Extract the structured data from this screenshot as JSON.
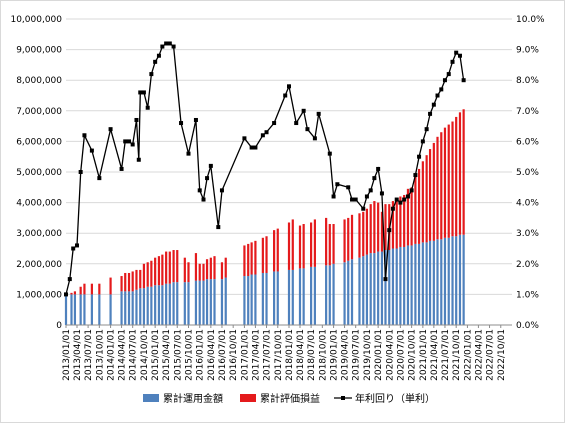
{
  "chart_data": {
    "type": "bar+line",
    "title": "",
    "grid": true,
    "legend_position": "bottom",
    "colors": {
      "invested": "#4f81bd",
      "gain": "#e41a1c",
      "yield": "#000000",
      "grid": "#d9d9d9"
    },
    "y_left": {
      "min": 0,
      "max": 10000000,
      "ticks": [
        "0",
        "1,000,000",
        "2,000,000",
        "3,000,000",
        "4,000,000",
        "5,000,000",
        "6,000,000",
        "7,000,000",
        "8,000,000",
        "9,000,000",
        "10,000,000"
      ]
    },
    "y_right": {
      "min": 0,
      "max": 0.1,
      "ticks": [
        "0.0%",
        "1.0%",
        "2.0%",
        "3.0%",
        "4.0%",
        "5.0%",
        "6.0%",
        "7.0%",
        "8.0%",
        "9.0%",
        "10.0%"
      ]
    },
    "x_ticks": [
      "2013/01/01",
      "2013/04/01",
      "2013/07/01",
      "2013/10/01",
      "2014/01/01",
      "2014/04/01",
      "2014/07/01",
      "2014/10/01",
      "2015/01/01",
      "2015/04/01",
      "2015/07/01",
      "2015/10/01",
      "2016/01/01",
      "2016/04/01",
      "2016/07/01",
      "2016/10/01",
      "2017/01/01",
      "2017/04/01",
      "2017/07/01",
      "2017/10/01",
      "2018/01/01",
      "2018/04/01",
      "2018/07/01",
      "2018/10/01",
      "2019/01/01",
      "2019/04/01",
      "2019/07/01",
      "2019/10/01",
      "2020/01/01",
      "2020/04/01",
      "2020/07/01",
      "2020/10/01",
      "2021/01/01",
      "2021/04/01",
      "2021/07/01",
      "2021/10/01",
      "2022/01/01",
      "2022/04/01",
      "2022/07/01",
      "2022/10/01"
    ],
    "series": [
      {
        "name": "累計運用金額",
        "type": "bar-stack-base",
        "points": [
          [
            "2013/01/01",
            1000000
          ],
          [
            "2013/02/15",
            1000000
          ],
          [
            "2013/03/15",
            1000000
          ],
          [
            "2013/05/01",
            1000000
          ],
          [
            "2013/06/01",
            1000000
          ],
          [
            "2013/08/01",
            1000000
          ],
          [
            "2013/10/01",
            1000000
          ],
          [
            "2014/01/01",
            1000000
          ],
          [
            "2014/04/01",
            1100000
          ],
          [
            "2014/05/01",
            1100000
          ],
          [
            "2014/06/01",
            1100000
          ],
          [
            "2014/07/01",
            1100000
          ],
          [
            "2014/08/01",
            1150000
          ],
          [
            "2014/09/01",
            1200000
          ],
          [
            "2014/10/01",
            1200000
          ],
          [
            "2014/11/01",
            1250000
          ],
          [
            "2014/12/01",
            1250000
          ],
          [
            "2015/01/01",
            1300000
          ],
          [
            "2015/02/01",
            1300000
          ],
          [
            "2015/03/01",
            1300000
          ],
          [
            "2015/04/01",
            1350000
          ],
          [
            "2015/05/01",
            1350000
          ],
          [
            "2015/06/01",
            1400000
          ],
          [
            "2015/07/01",
            1400000
          ],
          [
            "2015/09/01",
            1400000
          ],
          [
            "2015/10/01",
            1400000
          ],
          [
            "2015/12/01",
            1450000
          ],
          [
            "2016/01/01",
            1450000
          ],
          [
            "2016/02/01",
            1450000
          ],
          [
            "2016/03/01",
            1500000
          ],
          [
            "2016/04/01",
            1500000
          ],
          [
            "2016/05/01",
            1500000
          ],
          [
            "2016/07/01",
            1500000
          ],
          [
            "2016/08/01",
            1550000
          ],
          [
            "2017/01/01",
            1600000
          ],
          [
            "2017/02/01",
            1600000
          ],
          [
            "2017/03/01",
            1650000
          ],
          [
            "2017/04/01",
            1650000
          ],
          [
            "2017/06/01",
            1700000
          ],
          [
            "2017/07/01",
            1700000
          ],
          [
            "2017/09/01",
            1750000
          ],
          [
            "2017/10/01",
            1750000
          ],
          [
            "2018/01/01",
            1800000
          ],
          [
            "2018/02/01",
            1800000
          ],
          [
            "2018/04/01",
            1850000
          ],
          [
            "2018/05/01",
            1850000
          ],
          [
            "2018/07/01",
            1900000
          ],
          [
            "2018/08/01",
            1900000
          ],
          [
            "2018/11/01",
            1950000
          ],
          [
            "2018/12/01",
            1950000
          ],
          [
            "2019/01/01",
            2000000
          ],
          [
            "2019/04/01",
            2050000
          ],
          [
            "2019/05/01",
            2100000
          ],
          [
            "2019/06/01",
            2150000
          ],
          [
            "2019/08/01",
            2200000
          ],
          [
            "2019/09/01",
            2250000
          ],
          [
            "2019/10/01",
            2300000
          ],
          [
            "2019/11/01",
            2350000
          ],
          [
            "2019/12/01",
            2350000
          ],
          [
            "2020/01/01",
            2400000
          ],
          [
            "2020/02/01",
            2400000
          ],
          [
            "2020/03/01",
            2450000
          ],
          [
            "2020/04/01",
            2450000
          ],
          [
            "2020/05/01",
            2500000
          ],
          [
            "2020/06/01",
            2500000
          ],
          [
            "2020/07/01",
            2550000
          ],
          [
            "2020/08/01",
            2550000
          ],
          [
            "2020/09/01",
            2600000
          ],
          [
            "2020/10/01",
            2600000
          ],
          [
            "2020/11/01",
            2650000
          ],
          [
            "2020/12/01",
            2650000
          ],
          [
            "2021/01/01",
            2700000
          ],
          [
            "2021/02/01",
            2700000
          ],
          [
            "2021/03/01",
            2750000
          ],
          [
            "2021/04/01",
            2750000
          ],
          [
            "2021/05/01",
            2800000
          ],
          [
            "2021/06/01",
            2800000
          ],
          [
            "2021/07/01",
            2850000
          ],
          [
            "2021/08/01",
            2850000
          ],
          [
            "2021/09/01",
            2900000
          ],
          [
            "2021/10/01",
            2900000
          ],
          [
            "2021/11/01",
            2950000
          ],
          [
            "2021/12/01",
            2950000
          ]
        ]
      },
      {
        "name": "累計評価損益",
        "type": "bar-stack-top",
        "points": [
          [
            "2013/01/01",
            0
          ],
          [
            "2013/02/15",
            50000
          ],
          [
            "2013/03/15",
            100000
          ],
          [
            "2013/05/01",
            250000
          ],
          [
            "2013/06/01",
            350000
          ],
          [
            "2013/08/01",
            350000
          ],
          [
            "2013/10/01",
            350000
          ],
          [
            "2014/01/01",
            550000
          ],
          [
            "2014/04/01",
            500000
          ],
          [
            "2014/05/01",
            600000
          ],
          [
            "2014/06/01",
            600000
          ],
          [
            "2014/07/01",
            650000
          ],
          [
            "2014/08/01",
            650000
          ],
          [
            "2014/09/01",
            600000
          ],
          [
            "2014/10/01",
            800000
          ],
          [
            "2014/11/01",
            800000
          ],
          [
            "2014/12/01",
            850000
          ],
          [
            "2015/01/01",
            900000
          ],
          [
            "2015/02/01",
            950000
          ],
          [
            "2015/03/01",
            1000000
          ],
          [
            "2015/04/01",
            1050000
          ],
          [
            "2015/05/01",
            1050000
          ],
          [
            "2015/06/01",
            1050000
          ],
          [
            "2015/07/01",
            1050000
          ],
          [
            "2015/09/01",
            800000
          ],
          [
            "2015/10/01",
            650000
          ],
          [
            "2015/12/01",
            900000
          ],
          [
            "2016/01/01",
            550000
          ],
          [
            "2016/02/01",
            550000
          ],
          [
            "2016/03/01",
            650000
          ],
          [
            "2016/04/01",
            700000
          ],
          [
            "2016/05/01",
            750000
          ],
          [
            "2016/07/01",
            550000
          ],
          [
            "2016/08/01",
            650000
          ],
          [
            "2017/01/01",
            1000000
          ],
          [
            "2017/02/01",
            1050000
          ],
          [
            "2017/03/01",
            1050000
          ],
          [
            "2017/04/01",
            1100000
          ],
          [
            "2017/06/01",
            1150000
          ],
          [
            "2017/07/01",
            1200000
          ],
          [
            "2017/09/01",
            1350000
          ],
          [
            "2017/10/01",
            1400000
          ],
          [
            "2018/01/01",
            1550000
          ],
          [
            "2018/02/01",
            1650000
          ],
          [
            "2018/04/01",
            1400000
          ],
          [
            "2018/05/01",
            1450000
          ],
          [
            "2018/07/01",
            1450000
          ],
          [
            "2018/08/01",
            1550000
          ],
          [
            "2018/11/01",
            1550000
          ],
          [
            "2018/12/01",
            1350000
          ],
          [
            "2019/01/01",
            1300000
          ],
          [
            "2019/04/01",
            1400000
          ],
          [
            "2019/05/01",
            1400000
          ],
          [
            "2019/06/01",
            1450000
          ],
          [
            "2019/08/01",
            1450000
          ],
          [
            "2019/09/01",
            1450000
          ],
          [
            "2019/10/01",
            1500000
          ],
          [
            "2019/11/01",
            1600000
          ],
          [
            "2019/12/01",
            1700000
          ],
          [
            "2020/01/01",
            1600000
          ],
          [
            "2020/02/01",
            1300000
          ],
          [
            "2020/03/01",
            1500000
          ],
          [
            "2020/04/01",
            1500000
          ],
          [
            "2020/05/01",
            1550000
          ],
          [
            "2020/06/01",
            1550000
          ],
          [
            "2020/07/01",
            1650000
          ],
          [
            "2020/08/01",
            1700000
          ],
          [
            "2020/09/01",
            1850000
          ],
          [
            "2020/10/01",
            1900000
          ],
          [
            "2020/11/01",
            2250000
          ],
          [
            "2020/12/01",
            2450000
          ],
          [
            "2021/01/01",
            2650000
          ],
          [
            "2021/02/01",
            2850000
          ],
          [
            "2021/03/01",
            3000000
          ],
          [
            "2021/04/01",
            3200000
          ],
          [
            "2021/05/01",
            3350000
          ],
          [
            "2021/06/01",
            3500000
          ],
          [
            "2021/07/01",
            3600000
          ],
          [
            "2021/08/01",
            3700000
          ],
          [
            "2021/09/01",
            3750000
          ],
          [
            "2021/10/01",
            3900000
          ],
          [
            "2021/11/01",
            4000000
          ],
          [
            "2021/12/01",
            4100000
          ]
        ]
      },
      {
        "name": "年利回り（単利）",
        "type": "line",
        "axis": "right",
        "points": [
          [
            "2013/01/01",
            0.01
          ],
          [
            "2013/02/01",
            0.015
          ],
          [
            "2013/03/01",
            0.025
          ],
          [
            "2013/04/01",
            0.026
          ],
          [
            "2013/05/01",
            0.05
          ],
          [
            "2013/06/01",
            0.062
          ],
          [
            "2013/08/01",
            0.057
          ],
          [
            "2013/10/01",
            0.048
          ],
          [
            "2014/01/01",
            0.064
          ],
          [
            "2014/04/01",
            0.051
          ],
          [
            "2014/05/01",
            0.06
          ],
          [
            "2014/06/01",
            0.06
          ],
          [
            "2014/07/01",
            0.059
          ],
          [
            "2014/08/01",
            0.067
          ],
          [
            "2014/08/20",
            0.054
          ],
          [
            "2014/09/01",
            0.076
          ],
          [
            "2014/10/01",
            0.076
          ],
          [
            "2014/11/01",
            0.071
          ],
          [
            "2014/12/01",
            0.082
          ],
          [
            "2015/01/01",
            0.086
          ],
          [
            "2015/02/01",
            0.088
          ],
          [
            "2015/03/01",
            0.091
          ],
          [
            "2015/04/01",
            0.092
          ],
          [
            "2015/05/01",
            0.092
          ],
          [
            "2015/06/01",
            0.091
          ],
          [
            "2015/08/01",
            0.066
          ],
          [
            "2015/10/01",
            0.056
          ],
          [
            "2015/12/01",
            0.067
          ],
          [
            "2016/01/01",
            0.044
          ],
          [
            "2016/02/01",
            0.041
          ],
          [
            "2016/03/01",
            0.048
          ],
          [
            "2016/04/01",
            0.052
          ],
          [
            "2016/06/01",
            0.032
          ],
          [
            "2016/07/01",
            0.044
          ],
          [
            "2017/01/01",
            0.061
          ],
          [
            "2017/03/01",
            0.058
          ],
          [
            "2017/04/01",
            0.058
          ],
          [
            "2017/06/01",
            0.062
          ],
          [
            "2017/07/01",
            0.063
          ],
          [
            "2017/09/01",
            0.066
          ],
          [
            "2017/12/01",
            0.075
          ],
          [
            "2018/01/01",
            0.078
          ],
          [
            "2018/03/01",
            0.066
          ],
          [
            "2018/05/01",
            0.07
          ],
          [
            "2018/06/01",
            0.064
          ],
          [
            "2018/08/01",
            0.061
          ],
          [
            "2018/09/01",
            0.069
          ],
          [
            "2018/12/01",
            0.056
          ],
          [
            "2019/01/01",
            0.042
          ],
          [
            "2019/02/01",
            0.046
          ],
          [
            "2019/05/01",
            0.045
          ],
          [
            "2019/06/01",
            0.041
          ],
          [
            "2019/07/01",
            0.041
          ],
          [
            "2019/09/01",
            0.038
          ],
          [
            "2019/10/01",
            0.042
          ],
          [
            "2019/11/01",
            0.044
          ],
          [
            "2019/12/01",
            0.048
          ],
          [
            "2020/01/01",
            0.051
          ],
          [
            "2020/02/01",
            0.043
          ],
          [
            "2020/03/01",
            0.015
          ],
          [
            "2020/04/01",
            0.031
          ],
          [
            "2020/05/01",
            0.038
          ],
          [
            "2020/06/01",
            0.041
          ],
          [
            "2020/07/01",
            0.04
          ],
          [
            "2020/08/01",
            0.041
          ],
          [
            "2020/09/01",
            0.042
          ],
          [
            "2020/10/01",
            0.044
          ],
          [
            "2020/11/01",
            0.049
          ],
          [
            "2020/12/01",
            0.055
          ],
          [
            "2021/01/01",
            0.06
          ],
          [
            "2021/02/01",
            0.064
          ],
          [
            "2021/03/01",
            0.069
          ],
          [
            "2021/04/01",
            0.072
          ],
          [
            "2021/05/01",
            0.075
          ],
          [
            "2021/06/01",
            0.077
          ],
          [
            "2021/07/01",
            0.08
          ],
          [
            "2021/08/01",
            0.082
          ],
          [
            "2021/09/01",
            0.086
          ],
          [
            "2021/10/01",
            0.089
          ],
          [
            "2021/11/01",
            0.088
          ],
          [
            "2021/12/01",
            0.08
          ]
        ]
      }
    ]
  }
}
